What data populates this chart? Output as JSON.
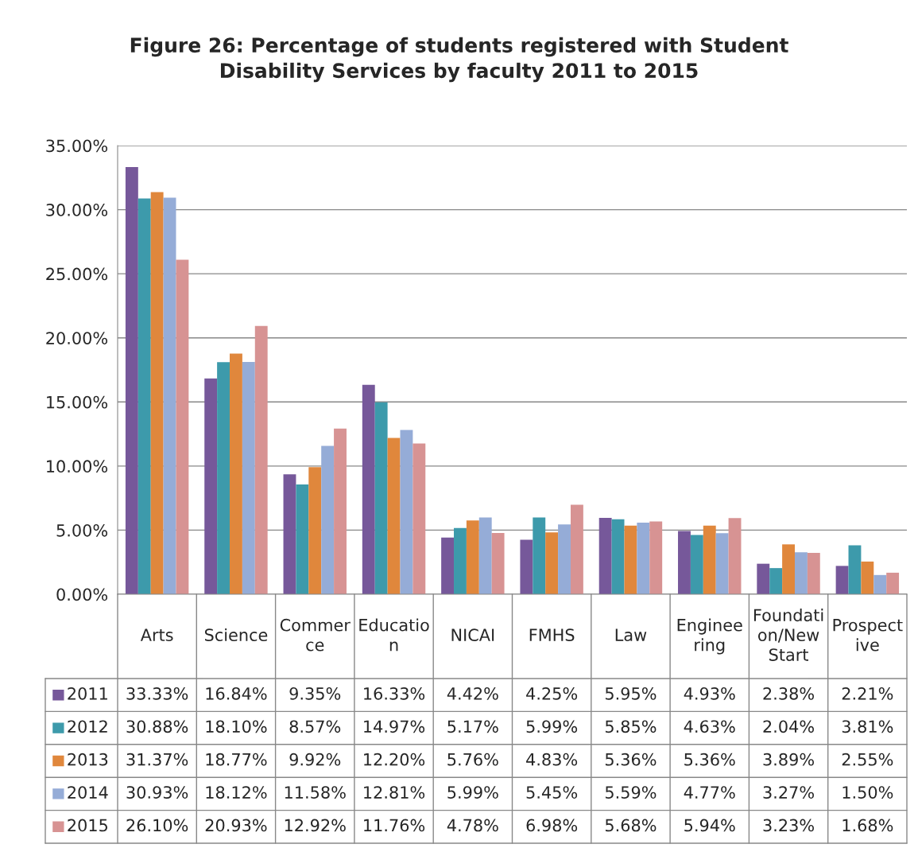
{
  "chart_data": {
    "type": "bar",
    "title": "Figure 26: Percentage of students registered with Student Disability Services by faculty 2011 to 2015",
    "categories": [
      "Arts",
      "Science",
      "Commerce",
      "Education",
      "NICAI",
      "FMHS",
      "Law",
      "Engineering",
      "Foundation/New Start",
      "Prospective"
    ],
    "series": [
      {
        "name": "2011",
        "color": "#76589a",
        "values": [
          33.33,
          16.84,
          9.35,
          16.33,
          4.42,
          4.25,
          5.95,
          4.93,
          2.38,
          2.21
        ],
        "value_labels": [
          "33.33%",
          "16.84%",
          "9.35%",
          "16.33%",
          "4.42%",
          "4.25%",
          "5.95%",
          "4.93%",
          "2.38%",
          "2.21%"
        ]
      },
      {
        "name": "2012",
        "color": "#3d9aab",
        "values": [
          30.88,
          18.1,
          8.57,
          14.97,
          5.17,
          5.99,
          5.85,
          4.63,
          2.04,
          3.81
        ],
        "value_labels": [
          "30.88%",
          "18.10%",
          "8.57%",
          "14.97%",
          "5.17%",
          "5.99%",
          "5.85%",
          "4.63%",
          "2.04%",
          "3.81%"
        ]
      },
      {
        "name": "2013",
        "color": "#e0873c",
        "values": [
          31.37,
          18.77,
          9.92,
          12.2,
          5.76,
          4.83,
          5.36,
          5.36,
          3.89,
          2.55
        ],
        "value_labels": [
          "31.37%",
          "18.77%",
          "9.92%",
          "12.20%",
          "5.76%",
          "4.83%",
          "5.36%",
          "5.36%",
          "3.89%",
          "2.55%"
        ]
      },
      {
        "name": "2014",
        "color": "#95acd7",
        "values": [
          30.93,
          18.12,
          11.58,
          12.81,
          5.99,
          5.45,
          5.59,
          4.77,
          3.27,
          1.5
        ],
        "value_labels": [
          "30.93%",
          "18.12%",
          "11.58%",
          "12.81%",
          "5.99%",
          "5.45%",
          "5.59%",
          "4.77%",
          "3.27%",
          "1.50%"
        ]
      },
      {
        "name": "2015",
        "color": "#d79393",
        "values": [
          26.1,
          20.93,
          12.92,
          11.76,
          4.78,
          6.98,
          5.68,
          5.94,
          3.23,
          1.68
        ],
        "value_labels": [
          "26.10%",
          "20.93%",
          "12.92%",
          "11.76%",
          "4.78%",
          "6.98%",
          "5.68%",
          "5.94%",
          "3.23%",
          "1.68%"
        ]
      }
    ],
    "ylim": [
      0,
      35
    ],
    "yticks": [
      {
        "value": 0,
        "label": "0.00%"
      },
      {
        "value": 5,
        "label": "5.00%"
      },
      {
        "value": 10,
        "label": "10.00%"
      },
      {
        "value": 15,
        "label": "15.00%"
      },
      {
        "value": 20,
        "label": "20.00%"
      },
      {
        "value": 25,
        "label": "25.00%"
      },
      {
        "value": 30,
        "label": "30.00%"
      },
      {
        "value": 35,
        "label": "35.00%"
      }
    ],
    "grid": "y",
    "legend": "bottom left"
  }
}
